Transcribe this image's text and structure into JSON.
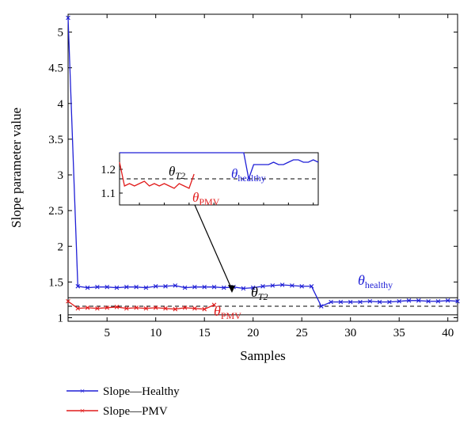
{
  "chart_data": {
    "type": "line",
    "xlabel": "Samples",
    "ylabel": "Slope parameter value",
    "xlim": [
      1,
      41
    ],
    "ylim": [
      0.95,
      5.25
    ],
    "xticks": [
      5,
      10,
      15,
      20,
      25,
      30,
      35,
      40
    ],
    "yticks": [
      1,
      1.5,
      2,
      2.5,
      3,
      3.5,
      4,
      4.5,
      5
    ],
    "series": [
      {
        "name": "Slope—Healthy",
        "color": "#1f1fd6",
        "marker": "x",
        "x": [
          1,
          2,
          3,
          4,
          5,
          6,
          7,
          8,
          9,
          10,
          11,
          12,
          13,
          14,
          15,
          16,
          17,
          18,
          19,
          20,
          21,
          22,
          23,
          24,
          25,
          26,
          27,
          28,
          29,
          30,
          31,
          32,
          33,
          34,
          35,
          36,
          37,
          38,
          39,
          40,
          41
        ],
        "values": [
          5.2,
          1.44,
          1.42,
          1.43,
          1.43,
          1.42,
          1.43,
          1.43,
          1.42,
          1.44,
          1.44,
          1.45,
          1.42,
          1.43,
          1.43,
          1.43,
          1.42,
          1.43,
          1.41,
          1.42,
          1.44,
          1.45,
          1.46,
          1.45,
          1.44,
          1.44,
          1.16,
          1.22,
          1.22,
          1.22,
          1.22,
          1.23,
          1.22,
          1.22,
          1.23,
          1.24,
          1.24,
          1.23,
          1.23,
          1.24,
          1.23
        ]
      },
      {
        "name": "Slope—PMV",
        "color": "#e11b1b",
        "marker": "x",
        "x": [
          1,
          2,
          3,
          4,
          5,
          6,
          7,
          8,
          9,
          10,
          11,
          12,
          13,
          14,
          15,
          16
        ],
        "values": [
          1.23,
          1.13,
          1.14,
          1.13,
          1.14,
          1.15,
          1.13,
          1.14,
          1.13,
          1.14,
          1.13,
          1.12,
          1.14,
          1.13,
          1.12,
          1.18
        ]
      }
    ],
    "thresholds": [
      {
        "name": "theta_healthy",
        "value": 1.28,
        "style": "solid",
        "label_main": "θ",
        "label_sub": "healthy",
        "label_color": "#1f1fd6"
      },
      {
        "name": "theta_T2",
        "value": 1.16,
        "style": "dashed",
        "label_main": "θ",
        "label_sub": "T2",
        "label_color": "#000000"
      },
      {
        "name": "theta_PMV",
        "value": 1.04,
        "style": "solid",
        "label_main": "θ",
        "label_sub": "PMV",
        "label_color": "#e11b1b"
      }
    ],
    "inset": {
      "xlim": [
        1,
        41
      ],
      "ylim": [
        1.05,
        1.27
      ],
      "yticks": [
        1.1,
        1.2
      ],
      "ytick_labels": [
        "1.1",
        "1.2"
      ]
    },
    "legend": {
      "placement": "bottom-left",
      "entries": [
        "Slope—Healthy",
        "Slope—PMV"
      ]
    }
  }
}
